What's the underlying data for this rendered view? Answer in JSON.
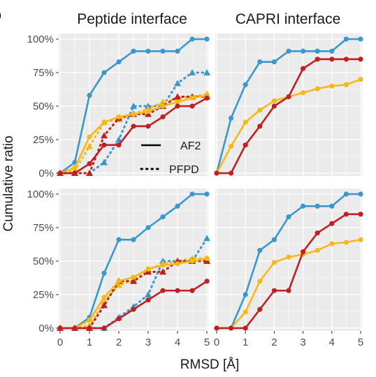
{
  "figure_label": "b",
  "y_axis_label": "Cumulative ratio",
  "x_axis_label": "RMSD [Å]",
  "column_titles": [
    "Peptide interface",
    "CAPRI interface"
  ],
  "legend": [
    {
      "label": "AF2",
      "line_style": "solid"
    },
    {
      "label": "PFPD",
      "line_style": "dotted"
    }
  ],
  "colors": {
    "blue": "#3a98cc",
    "yellow": "#f6b91c",
    "red": "#c0201f",
    "panel_bg": "#ebebeb",
    "grid": "#ffffff",
    "axis_text": "#4d4d4d"
  },
  "chart_data": [
    {
      "type": "line",
      "panel": "top-left",
      "title": "Peptide interface",
      "x": [
        0,
        0.5,
        1,
        1.5,
        2,
        2.5,
        3,
        3.5,
        4,
        4.5,
        5
      ],
      "xlim": [
        0,
        5
      ],
      "ylim": [
        0,
        1
      ],
      "y_ticks": [
        "0%",
        "25%",
        "50%",
        "75%",
        "100%"
      ],
      "grid": true,
      "legend_position": "lower-right",
      "series": [
        {
          "color": "blue",
          "style": "solid",
          "marker": "circle",
          "values": [
            0,
            0.08,
            0.58,
            0.75,
            0.83,
            0.91,
            0.91,
            0.91,
            0.91,
            1.0,
            1.0
          ]
        },
        {
          "color": "yellow",
          "style": "solid",
          "marker": "circle",
          "values": [
            0,
            0.04,
            0.27,
            0.38,
            0.42,
            0.44,
            0.46,
            0.5,
            0.53,
            0.56,
            0.58
          ]
        },
        {
          "color": "red",
          "style": "solid",
          "marker": "circle",
          "values": [
            0,
            0,
            0.07,
            0.21,
            0.21,
            0.35,
            0.35,
            0.42,
            0.5,
            0.5,
            0.56
          ]
        },
        {
          "color": "blue",
          "style": "dotted",
          "marker": "triangle",
          "values": [
            0,
            0,
            0,
            0.08,
            0.25,
            0.5,
            0.5,
            0.5,
            0.67,
            0.75,
            0.75
          ]
        },
        {
          "color": "yellow",
          "style": "dotted",
          "marker": "triangle",
          "values": [
            0,
            0.02,
            0.2,
            0.38,
            0.4,
            0.44,
            0.48,
            0.53,
            0.56,
            0.57,
            0.59
          ]
        },
        {
          "color": "red",
          "style": "dotted",
          "marker": "triangle",
          "values": [
            0,
            0,
            0,
            0.28,
            0.41,
            0.44,
            0.44,
            0.5,
            0.57,
            0.57,
            0.57
          ]
        }
      ]
    },
    {
      "type": "line",
      "panel": "top-right",
      "title": "CAPRI interface",
      "x": [
        0,
        0.5,
        1,
        1.5,
        2,
        2.5,
        3,
        3.5,
        4,
        4.5,
        5
      ],
      "xlim": [
        0,
        5
      ],
      "ylim": [
        0,
        1
      ],
      "grid": true,
      "series": [
        {
          "color": "blue",
          "style": "solid",
          "marker": "circle",
          "values": [
            0,
            0.41,
            0.66,
            0.83,
            0.83,
            0.91,
            0.91,
            0.91,
            0.91,
            1.0,
            1.0
          ]
        },
        {
          "color": "yellow",
          "style": "solid",
          "marker": "circle",
          "values": [
            0,
            0.2,
            0.38,
            0.47,
            0.54,
            0.57,
            0.6,
            0.63,
            0.65,
            0.66,
            0.7
          ]
        },
        {
          "color": "red",
          "style": "solid",
          "marker": "circle",
          "values": [
            0,
            0,
            0.21,
            0.35,
            0.5,
            0.57,
            0.78,
            0.85,
            0.85,
            0.85,
            0.85
          ]
        }
      ]
    },
    {
      "type": "line",
      "panel": "bottom-left",
      "x": [
        0,
        0.5,
        1,
        1.5,
        2,
        2.5,
        3,
        3.5,
        4,
        4.5,
        5
      ],
      "xlim": [
        0,
        5
      ],
      "ylim": [
        0,
        1
      ],
      "x_ticks": [
        "0",
        "1",
        "2",
        "3",
        "4",
        "5"
      ],
      "grid": true,
      "series": [
        {
          "color": "blue",
          "style": "solid",
          "marker": "circle",
          "values": [
            0,
            0,
            0.08,
            0.41,
            0.66,
            0.66,
            0.75,
            0.83,
            0.91,
            1.0,
            1.0
          ]
        },
        {
          "color": "yellow",
          "style": "solid",
          "marker": "circle",
          "values": [
            0,
            0,
            0.06,
            0.23,
            0.35,
            0.38,
            0.44,
            0.47,
            0.48,
            0.5,
            0.52
          ]
        },
        {
          "color": "red",
          "style": "solid",
          "marker": "circle",
          "values": [
            0,
            0,
            0,
            0,
            0.07,
            0.14,
            0.21,
            0.28,
            0.28,
            0.28,
            0.35
          ]
        },
        {
          "color": "blue",
          "style": "dotted",
          "marker": "triangle",
          "values": [
            0,
            0,
            0,
            0,
            0.08,
            0.16,
            0.25,
            0.5,
            0.5,
            0.5,
            0.67
          ]
        },
        {
          "color": "yellow",
          "style": "dotted",
          "marker": "triangle",
          "values": [
            0,
            0,
            0.02,
            0.2,
            0.32,
            0.36,
            0.44,
            0.48,
            0.5,
            0.52,
            0.52
          ]
        },
        {
          "color": "red",
          "style": "dotted",
          "marker": "triangle",
          "values": [
            0,
            0,
            0,
            0.17,
            0.35,
            0.35,
            0.42,
            0.42,
            0.5,
            0.5,
            0.5
          ]
        }
      ]
    },
    {
      "type": "line",
      "panel": "bottom-right",
      "x": [
        0,
        0.5,
        1,
        1.5,
        2,
        2.5,
        3,
        3.5,
        4,
        4.5,
        5
      ],
      "xlim": [
        0,
        5
      ],
      "ylim": [
        0,
        1
      ],
      "x_ticks": [
        "0",
        "1",
        "2",
        "3",
        "4",
        "5"
      ],
      "grid": true,
      "series": [
        {
          "color": "blue",
          "style": "solid",
          "marker": "circle",
          "values": [
            0,
            0,
            0.25,
            0.58,
            0.66,
            0.83,
            0.91,
            0.91,
            0.91,
            1.0,
            1.0
          ]
        },
        {
          "color": "yellow",
          "style": "solid",
          "marker": "circle",
          "values": [
            0,
            0,
            0.12,
            0.35,
            0.49,
            0.53,
            0.55,
            0.58,
            0.63,
            0.64,
            0.66
          ]
        },
        {
          "color": "red",
          "style": "solid",
          "marker": "circle",
          "values": [
            0,
            0,
            0,
            0.14,
            0.28,
            0.28,
            0.57,
            0.71,
            0.78,
            0.85,
            0.85
          ]
        }
      ]
    }
  ]
}
